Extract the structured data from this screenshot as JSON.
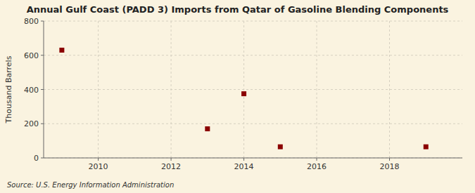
{
  "chart_data": {
    "type": "scatter",
    "title": "Annual Gulf Coast (PADD 3) Imports from Qatar of Gasoline Blending Components",
    "ylabel": "Thousand Barrels",
    "source": "Source: U.S. Energy Information Administration",
    "x": [
      2009,
      2013,
      2014,
      2015,
      2019
    ],
    "values": [
      630,
      170,
      375,
      65,
      65
    ],
    "color": "#8B0000",
    "marker": "square",
    "xlim": [
      2008.5,
      2020
    ],
    "ylim": [
      0,
      800
    ],
    "xticks": [
      2010,
      2012,
      2014,
      2016,
      2018
    ],
    "yticks": [
      0,
      200,
      400,
      600,
      800
    ],
    "grid": true
  }
}
